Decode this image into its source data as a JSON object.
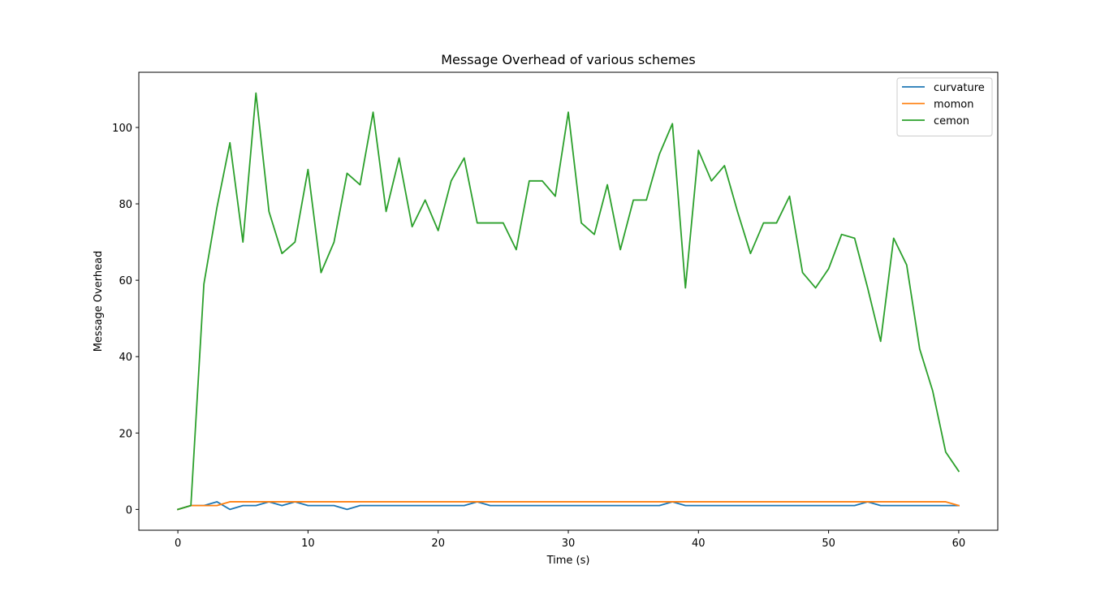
{
  "chart_data": {
    "type": "line",
    "title": "Message Overhead of various schemes",
    "xlabel": "Time (s)",
    "ylabel": "Message Overhead",
    "xlim": [
      -3,
      63
    ],
    "ylim": [
      -5.45,
      114.45
    ],
    "xticks": [
      0,
      10,
      20,
      30,
      40,
      50,
      60
    ],
    "yticks": [
      0,
      20,
      40,
      60,
      80,
      100
    ],
    "grid": false,
    "legend_position": "upper right",
    "x": [
      0,
      1,
      2,
      3,
      4,
      5,
      6,
      7,
      8,
      9,
      10,
      11,
      12,
      13,
      14,
      15,
      16,
      17,
      18,
      19,
      20,
      21,
      22,
      23,
      24,
      25,
      26,
      27,
      28,
      29,
      30,
      31,
      32,
      33,
      34,
      35,
      36,
      37,
      38,
      39,
      40,
      41,
      42,
      43,
      44,
      45,
      46,
      47,
      48,
      49,
      50,
      51,
      52,
      53,
      54,
      55,
      56,
      57,
      58,
      59,
      60
    ],
    "series": [
      {
        "name": "curvature",
        "color": "#1f77b4",
        "values": [
          0,
          1,
          1,
          2,
          0,
          1,
          1,
          2,
          1,
          2,
          1,
          1,
          1,
          0,
          1,
          1,
          1,
          1,
          1,
          1,
          1,
          1,
          1,
          2,
          1,
          1,
          1,
          1,
          1,
          1,
          1,
          1,
          1,
          1,
          1,
          1,
          1,
          1,
          2,
          1,
          1,
          1,
          1,
          1,
          1,
          1,
          1,
          1,
          1,
          1,
          1,
          1,
          1,
          2,
          1,
          1,
          1,
          1,
          1,
          1,
          1
        ]
      },
      {
        "name": "momon",
        "color": "#ff7f0e",
        "values": [
          0,
          1,
          1,
          1,
          2,
          2,
          2,
          2,
          2,
          2,
          2,
          2,
          2,
          2,
          2,
          2,
          2,
          2,
          2,
          2,
          2,
          2,
          2,
          2,
          2,
          2,
          2,
          2,
          2,
          2,
          2,
          2,
          2,
          2,
          2,
          2,
          2,
          2,
          2,
          2,
          2,
          2,
          2,
          2,
          2,
          2,
          2,
          2,
          2,
          2,
          2,
          2,
          2,
          2,
          2,
          2,
          2,
          2,
          2,
          2,
          1
        ]
      },
      {
        "name": "cemon",
        "color": "#2ca02c",
        "values": [
          0,
          1,
          59,
          79,
          96,
          70,
          109,
          78,
          67,
          70,
          89,
          62,
          70,
          88,
          85,
          104,
          78,
          92,
          74,
          81,
          73,
          86,
          92,
          75,
          75,
          75,
          68,
          86,
          86,
          82,
          104,
          75,
          72,
          85,
          68,
          81,
          81,
          93,
          101,
          58,
          94,
          86,
          90,
          78,
          67,
          75,
          75,
          82,
          62,
          58,
          63,
          72,
          71,
          58,
          44,
          71,
          64,
          42,
          31,
          15,
          10
        ]
      }
    ]
  }
}
